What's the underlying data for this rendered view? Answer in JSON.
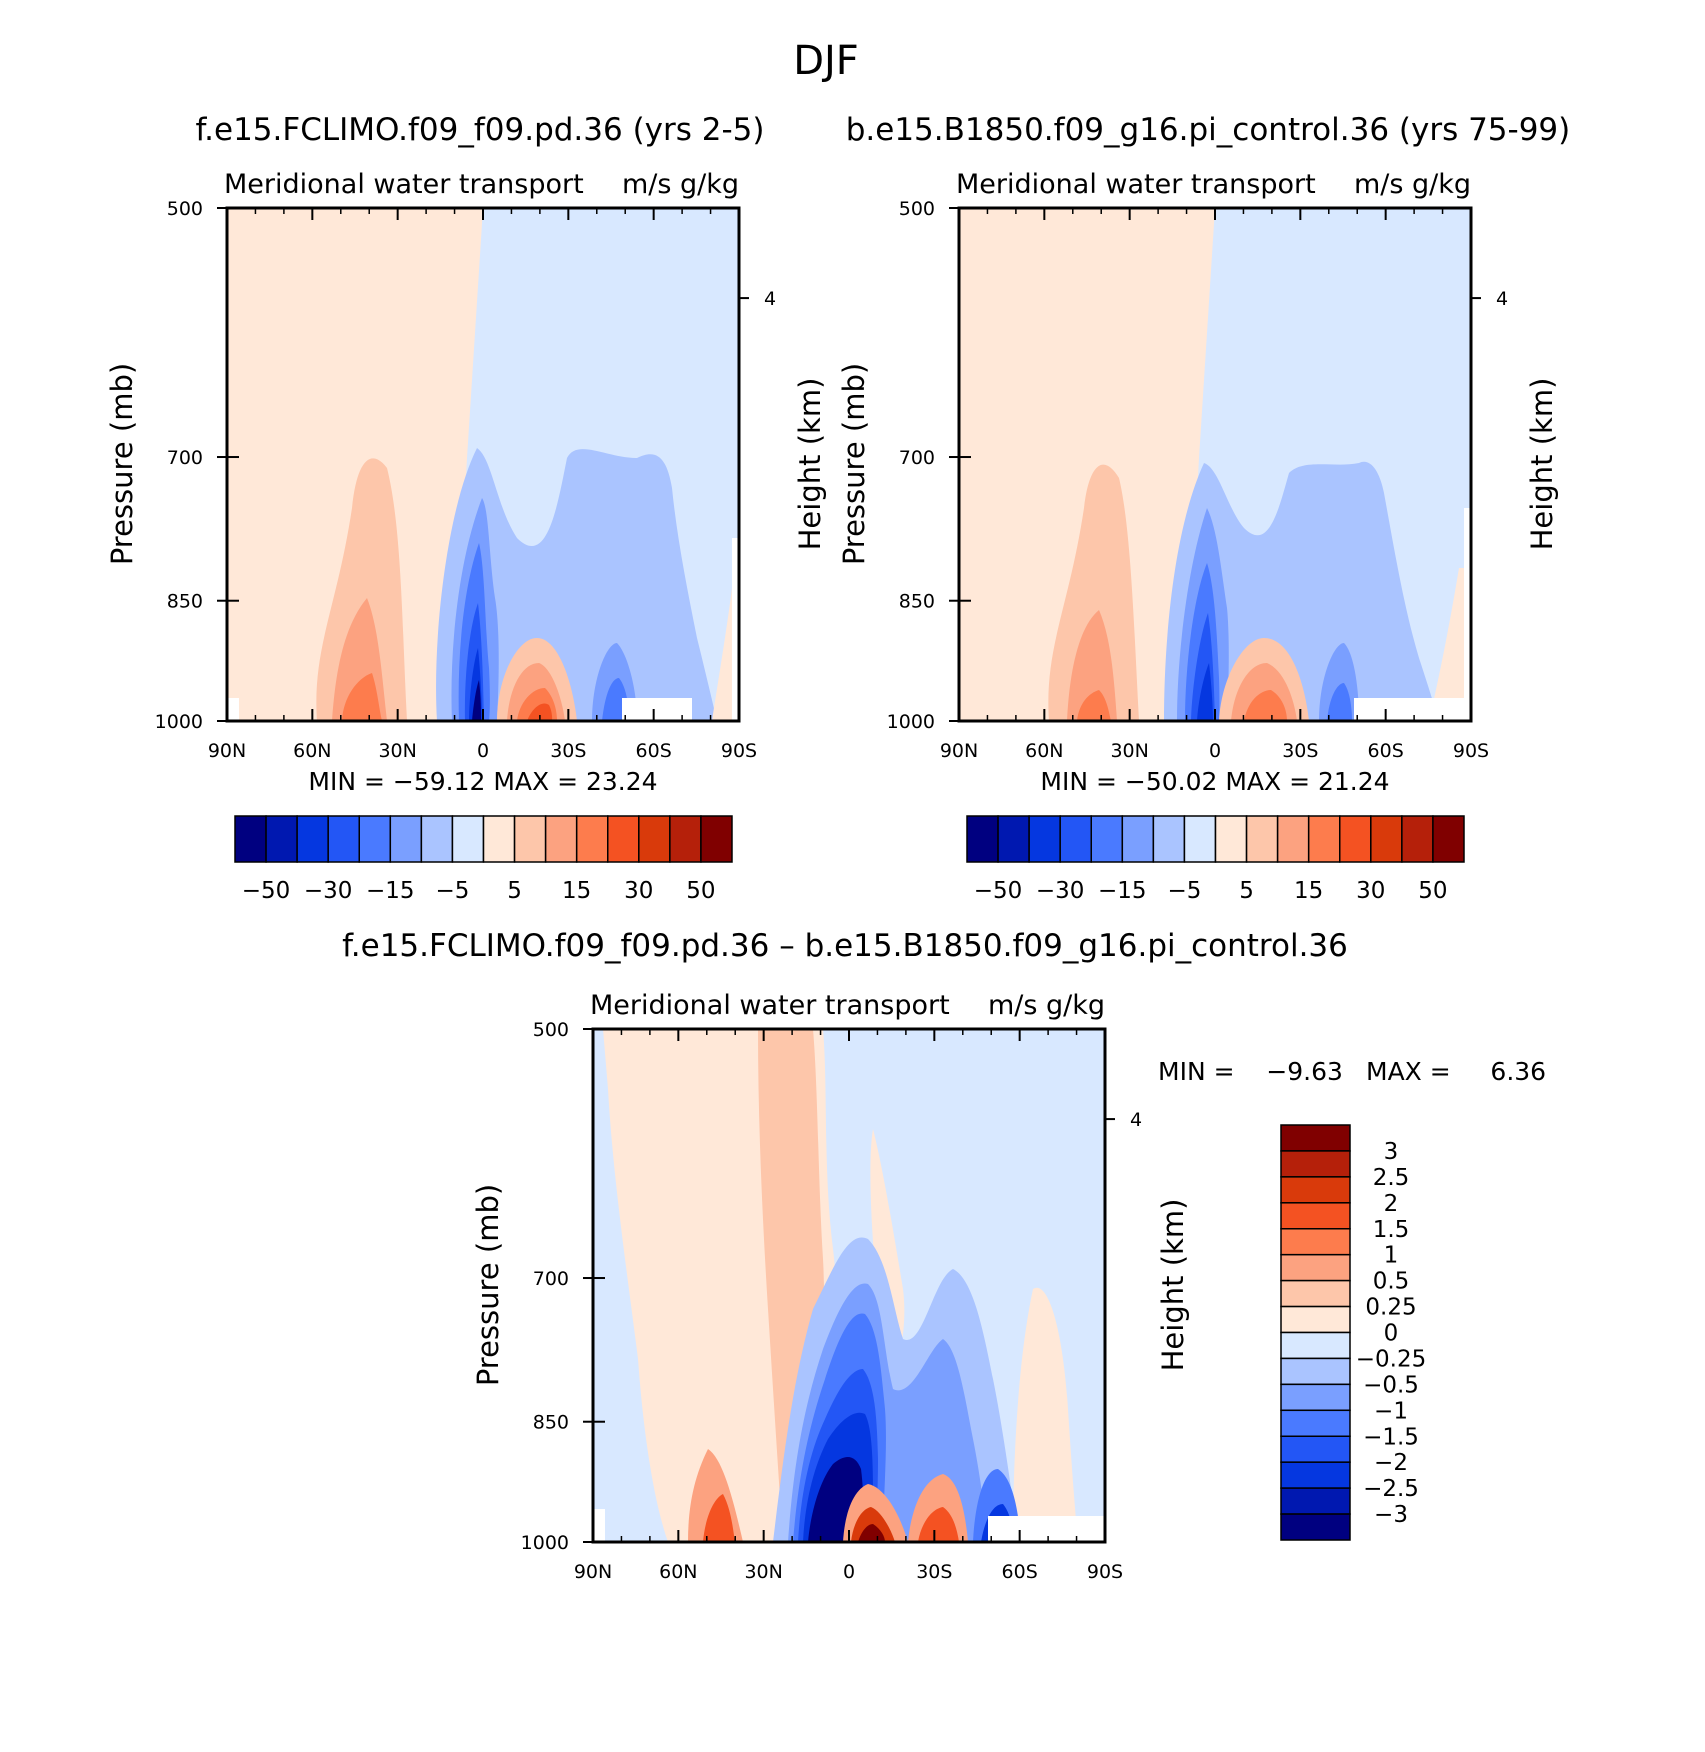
{
  "figure_title": "DJF",
  "panels": [
    {
      "id": "p1",
      "title": "f.e15.FCLIMO.f09_f09.pd.36 (yrs 2-5)",
      "left_string": "Meridional water transport",
      "right_string": "m/s g/kg",
      "ylabel": "Pressure (mb)",
      "ylabel_right": "Height (km)",
      "stats": "MIN =  −59.12   MAX =   23.24"
    },
    {
      "id": "p2",
      "title": "b.e15.B1850.f09_g16.pi_control.36 (yrs 75-99)",
      "left_string": "Meridional water transport",
      "right_string": "m/s g/kg",
      "ylabel": "Pressure (mb)",
      "ylabel_right": "Height (km)",
      "stats": "MIN =  −50.02   MAX =   21.24"
    },
    {
      "id": "p3",
      "title": "f.e15.FCLIMO.f09_f09.pd.36 – b.e15.B1850.f09_g16.pi_control.36",
      "left_string": "Meridional water transport",
      "right_string": "m/s g/kg",
      "ylabel": "Pressure (mb)",
      "ylabel_right": "Height (km)",
      "stats_min": "MIN =    −9.63",
      "stats_max": "MAX =     6.36"
    }
  ],
  "colorbars": {
    "main": {
      "colors": [
        "#000080",
        "#0018b0",
        "#0537e0",
        "#2356f5",
        "#4a7aff",
        "#7a9fff",
        "#aac4ff",
        "#d8e8ff",
        "#ffe8d8",
        "#fdc6aa",
        "#fca280",
        "#fd7c4d",
        "#f45222",
        "#d93a0b",
        "#b5200a",
        "#800000"
      ],
      "labels": [
        "−50",
        "−30",
        "−15",
        "−5",
        "5",
        "15",
        "30",
        "50"
      ]
    },
    "diff": {
      "colors": [
        "#000080",
        "#0018b0",
        "#0537e0",
        "#2356f5",
        "#4a7aff",
        "#7a9fff",
        "#aac4ff",
        "#d8e8ff",
        "#ffe8d8",
        "#fdc6aa",
        "#fca280",
        "#fd7c4d",
        "#f45222",
        "#d93a0b",
        "#b5200a",
        "#800000"
      ],
      "labels": [
        "3",
        "2.5",
        "2",
        "1.5",
        "1",
        "0.5",
        "0.25",
        "0",
        "−0.25",
        "−0.5",
        "−1",
        "−1.5",
        "−2",
        "−2.5",
        "−3"
      ]
    }
  },
  "chart_data": [
    {
      "type": "heatmap",
      "name": "f.e15.FCLIMO.f09_f09.pd.36 (yrs 2-5)",
      "variable": "Meridional water transport",
      "units": "m/s g/kg",
      "xlabel": "",
      "ylabel": "Pressure (mb)",
      "ylabel_right": "Height (km)",
      "x_ticks": [
        "90N",
        "60N",
        "30N",
        "0",
        "30S",
        "60S",
        "90S"
      ],
      "x_range_deg_north": [
        90,
        -90
      ],
      "y_ticks": [
        500,
        700,
        850,
        1000
      ],
      "y_range": [
        500,
        1000
      ],
      "right_y_ticks": [
        4
      ],
      "contour_levels": [
        -50,
        -40,
        -30,
        -20,
        -15,
        -10,
        -5,
        0,
        5,
        10,
        15,
        20,
        30,
        40,
        50
      ],
      "min": -59.12,
      "max": 23.24,
      "features": [
        {
          "lat": 0,
          "p": 500,
          "value": 2,
          "desc": "positive transport north of equator aloft"
        },
        {
          "lat": -45,
          "p": 600,
          "value": -3,
          "desc": "weak negative transport south of equator aloft"
        },
        {
          "lat": 10,
          "p": 975,
          "value": -59,
          "desc": "strong negative core near surface"
        },
        {
          "lat": 40,
          "p": 975,
          "value": 17,
          "desc": "positive low-level maximum"
        },
        {
          "lat": -22,
          "p": 975,
          "value": 23,
          "desc": "positive near-surface maximum south"
        },
        {
          "lat": -55,
          "p": 950,
          "value": -18,
          "desc": "negative low-level lobe"
        }
      ]
    },
    {
      "type": "heatmap",
      "name": "b.e15.B1850.f09_g16.pi_control.36 (yrs 75-99)",
      "variable": "Meridional water transport",
      "units": "m/s g/kg",
      "xlabel": "",
      "ylabel": "Pressure (mb)",
      "ylabel_right": "Height (km)",
      "x_ticks": [
        "90N",
        "60N",
        "30N",
        "0",
        "30S",
        "60S",
        "90S"
      ],
      "x_range_deg_north": [
        90,
        -90
      ],
      "y_ticks": [
        500,
        700,
        850,
        1000
      ],
      "y_range": [
        500,
        1000
      ],
      "right_y_ticks": [
        4
      ],
      "contour_levels": [
        -50,
        -40,
        -30,
        -20,
        -15,
        -10,
        -5,
        0,
        5,
        10,
        15,
        20,
        30,
        40,
        50
      ],
      "min": -50.02,
      "max": 21.24,
      "features": [
        {
          "lat": 12,
          "p": 975,
          "value": -50,
          "desc": "strong negative core near surface"
        },
        {
          "lat": 40,
          "p": 975,
          "value": 16,
          "desc": "positive low-level maximum"
        },
        {
          "lat": -18,
          "p": 975,
          "value": 21,
          "desc": "positive near-surface maximum south"
        },
        {
          "lat": -50,
          "p": 950,
          "value": -17,
          "desc": "negative low-level lobe"
        }
      ]
    },
    {
      "type": "heatmap",
      "name": "f.e15.FCLIMO.f09_f09.pd.36 – b.e15.B1850.f09_g16.pi_control.36",
      "variable": "Meridional water transport",
      "units": "m/s g/kg",
      "xlabel": "",
      "ylabel": "Pressure (mb)",
      "ylabel_right": "Height (km)",
      "x_ticks": [
        "90N",
        "60N",
        "30N",
        "0",
        "30S",
        "60S",
        "90S"
      ],
      "x_range_deg_north": [
        90,
        -90
      ],
      "y_ticks": [
        500,
        700,
        850,
        1000
      ],
      "y_range": [
        500,
        1000
      ],
      "right_y_ticks": [
        4
      ],
      "contour_levels": [
        -3,
        -2.5,
        -2,
        -1.5,
        -1,
        -0.5,
        -0.25,
        0,
        0.25,
        0.5,
        1,
        1.5,
        2,
        2.5,
        3
      ],
      "min": -9.63,
      "max": 6.36,
      "features": [
        {
          "lat": 10,
          "p": 950,
          "value": -9.6,
          "desc": "strong negative difference core"
        },
        {
          "lat": -4,
          "p": 980,
          "value": 6.4,
          "desc": "strong positive difference near surface"
        },
        {
          "lat": 40,
          "p": 980,
          "value": 2.5,
          "desc": "positive difference low level"
        },
        {
          "lat": -30,
          "p": 970,
          "value": 2.0,
          "desc": "positive difference south"
        },
        {
          "lat": -58,
          "p": 980,
          "value": -2.5,
          "desc": "negative difference southern high latitudes"
        }
      ]
    }
  ]
}
